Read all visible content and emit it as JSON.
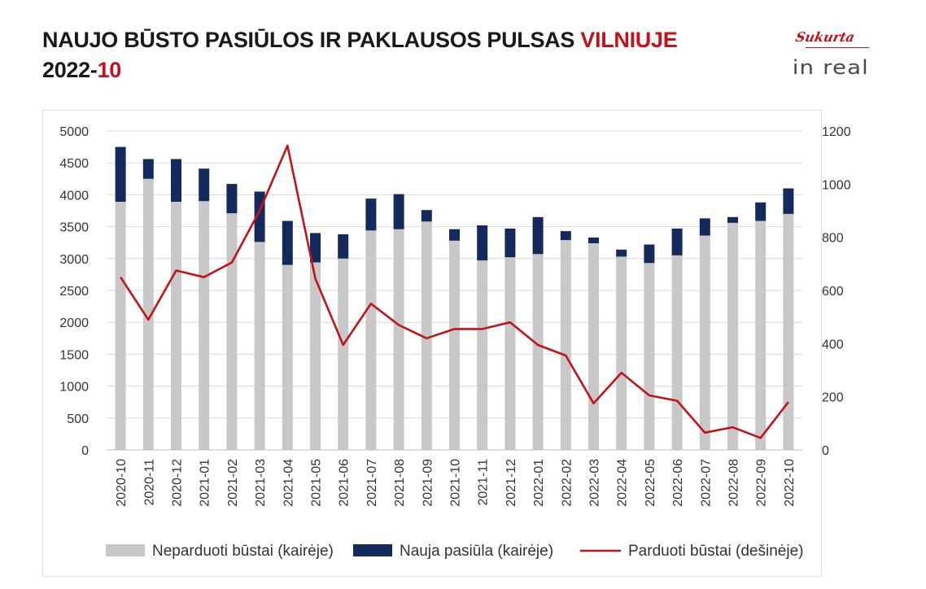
{
  "header": {
    "title_main": "NAUJO BŪSTO PASIŪLOS IR PAKLAUSOS PULSAS ",
    "title_accent": "VILNIUJE",
    "subtitle_main": "2022-",
    "subtitle_accent": "10"
  },
  "logo": {
    "script": "Sukurta",
    "main": "in real"
  },
  "colors": {
    "accent": "#c0141c",
    "unsold": "#c8c8c8",
    "new_supply": "#152a5c",
    "sold": "#c0141c",
    "grid": "#d9d9d9"
  },
  "chart_data": {
    "type": "bar",
    "stacked": true,
    "categories": [
      "2020-10",
      "2020-11",
      "2020-12",
      "2021-01",
      "2021-02",
      "2021-03",
      "2021-04",
      "2021-05",
      "2021-06",
      "2021-07",
      "2021-08",
      "2021-09",
      "2021-10",
      "2021-11",
      "2021-12",
      "2022-01",
      "2022-02",
      "2022-03",
      "2022-04",
      "2022-05",
      "2022-06",
      "2022-07",
      "2022-08",
      "2022-09",
      "2022-10"
    ],
    "series": [
      {
        "name": "Neparduoti būstai (kairėje)",
        "type": "bar",
        "axis": "left",
        "color": "#c8c8c8",
        "values": [
          3890,
          4250,
          3890,
          3900,
          3710,
          3260,
          2900,
          2940,
          3000,
          3440,
          3460,
          3580,
          3280,
          2970,
          3020,
          3070,
          3290,
          3240,
          3030,
          2930,
          3050,
          3360,
          3560,
          3590,
          3700
        ]
      },
      {
        "name": "Nauja pasiūla (kairėje)",
        "type": "bar",
        "axis": "left",
        "color": "#152a5c",
        "values": [
          860,
          310,
          670,
          510,
          460,
          790,
          690,
          460,
          380,
          500,
          550,
          180,
          180,
          550,
          450,
          580,
          140,
          90,
          110,
          290,
          420,
          270,
          90,
          290,
          400
        ]
      },
      {
        "name": "Parduoti būstai (dešinėje)",
        "type": "line",
        "axis": "right",
        "color": "#c0141c",
        "values": [
          650,
          490,
          675,
          650,
          705,
          900,
          1145,
          645,
          395,
          550,
          470,
          420,
          455,
          455,
          480,
          395,
          355,
          175,
          290,
          205,
          185,
          65,
          85,
          45,
          180
        ]
      }
    ],
    "left_axis": {
      "min": 0,
      "max": 5000,
      "ticks": [
        0,
        500,
        1000,
        1500,
        2000,
        2500,
        3000,
        3500,
        4000,
        4500,
        5000
      ]
    },
    "right_axis": {
      "min": 0,
      "max": 1200,
      "ticks": [
        0,
        200,
        400,
        600,
        800,
        1000,
        1200
      ]
    },
    "grid": true,
    "legend_position": "bottom"
  }
}
